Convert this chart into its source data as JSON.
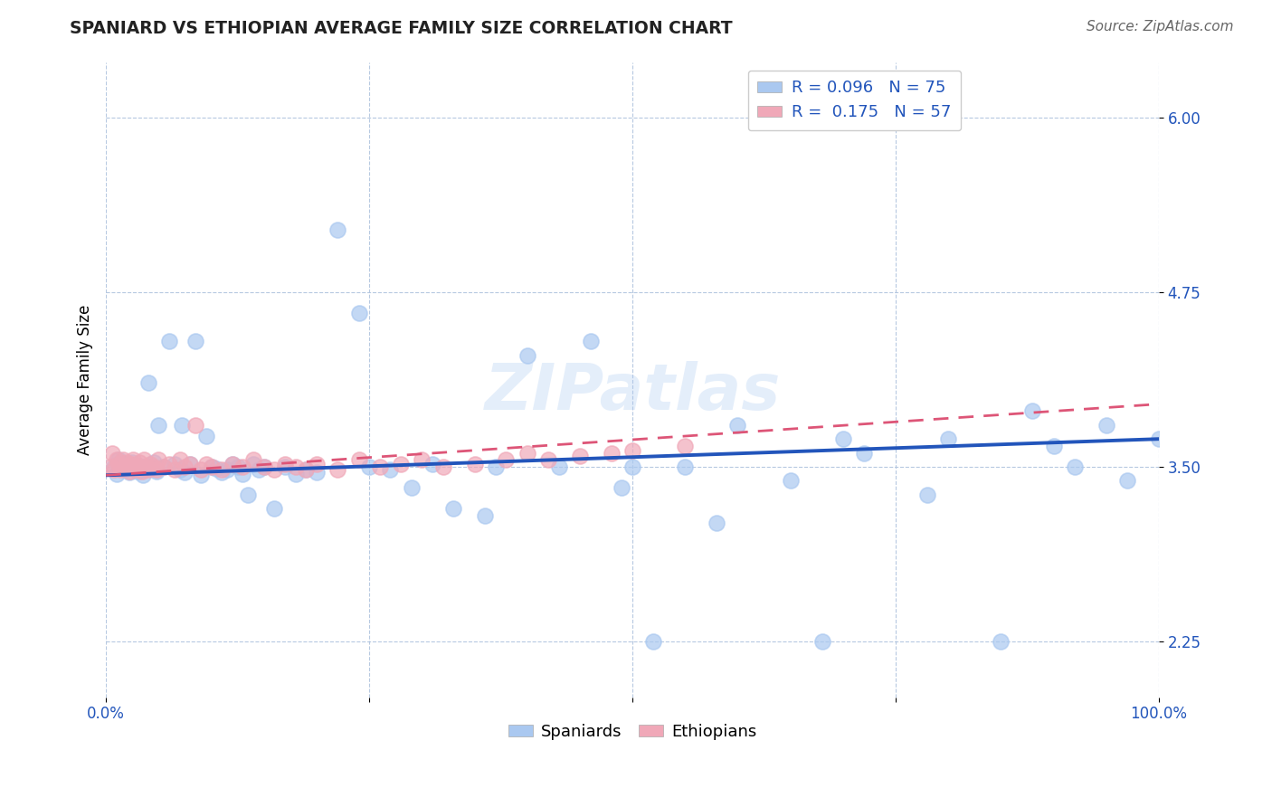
{
  "title": "SPANIARD VS ETHIOPIAN AVERAGE FAMILY SIZE CORRELATION CHART",
  "source": "Source: ZipAtlas.com",
  "ylabel": "Average Family Size",
  "xlim": [
    0.0,
    1.0
  ],
  "ylim": [
    1.85,
    6.4
  ],
  "yticks": [
    2.25,
    3.5,
    4.75,
    6.0
  ],
  "xticks": [
    0.0,
    0.25,
    0.5,
    0.75,
    1.0
  ],
  "xticklabels": [
    "0.0%",
    "",
    "",
    "",
    "100.0%"
  ],
  "yticklabels": [
    "2.25",
    "3.50",
    "4.75",
    "6.00"
  ],
  "spaniards_R": 0.096,
  "spaniards_N": 75,
  "ethiopians_R": 0.175,
  "ethiopians_N": 57,
  "spaniard_color": "#aac8f0",
  "ethiopian_color": "#f0a8b8",
  "spaniard_line_color": "#2255bb",
  "ethiopian_line_color": "#dd5577",
  "watermark": "ZIPatlas",
  "span_line_x0": 0.0,
  "span_line_y0": 3.44,
  "span_line_x1": 1.0,
  "span_line_y1": 3.7,
  "eth_line_x0": 0.0,
  "eth_line_y0": 3.44,
  "eth_line_x1": 1.0,
  "eth_line_y1": 3.95,
  "spaniards_x": [
    0.008,
    0.01,
    0.012,
    0.015,
    0.018,
    0.02,
    0.022,
    0.025,
    0.028,
    0.03,
    0.032,
    0.035,
    0.038,
    0.04,
    0.042,
    0.045,
    0.048,
    0.05,
    0.055,
    0.06,
    0.065,
    0.07,
    0.072,
    0.075,
    0.08,
    0.085,
    0.09,
    0.095,
    0.1,
    0.105,
    0.11,
    0.115,
    0.12,
    0.125,
    0.13,
    0.135,
    0.14,
    0.145,
    0.15,
    0.16,
    0.17,
    0.18,
    0.19,
    0.2,
    0.22,
    0.24,
    0.25,
    0.27,
    0.29,
    0.31,
    0.33,
    0.36,
    0.37,
    0.4,
    0.43,
    0.46,
    0.49,
    0.5,
    0.52,
    0.55,
    0.58,
    0.6,
    0.65,
    0.68,
    0.7,
    0.72,
    0.78,
    0.8,
    0.85,
    0.88,
    0.9,
    0.92,
    0.95,
    0.97,
    1.0
  ],
  "spaniards_y": [
    3.5,
    3.45,
    3.55,
    3.5,
    3.48,
    3.52,
    3.46,
    3.53,
    3.49,
    3.47,
    3.51,
    3.44,
    3.48,
    4.1,
    3.5,
    3.53,
    3.47,
    3.8,
    3.5,
    4.4,
    3.52,
    3.48,
    3.8,
    3.46,
    3.52,
    4.4,
    3.44,
    3.72,
    3.5,
    3.49,
    3.46,
    3.48,
    3.52,
    3.5,
    3.45,
    3.3,
    3.52,
    3.48,
    3.5,
    3.2,
    3.5,
    3.45,
    3.48,
    3.46,
    5.2,
    4.6,
    3.5,
    3.48,
    3.35,
    3.52,
    3.2,
    3.15,
    3.5,
    4.3,
    3.5,
    4.4,
    3.35,
    3.5,
    2.25,
    3.5,
    3.1,
    3.8,
    3.4,
    2.25,
    3.7,
    3.6,
    3.3,
    3.7,
    2.25,
    3.9,
    3.65,
    3.5,
    3.8,
    3.4,
    3.7
  ],
  "ethiopians_x": [
    0.004,
    0.006,
    0.008,
    0.01,
    0.012,
    0.014,
    0.016,
    0.018,
    0.02,
    0.022,
    0.024,
    0.026,
    0.028,
    0.03,
    0.032,
    0.034,
    0.036,
    0.038,
    0.04,
    0.042,
    0.045,
    0.048,
    0.05,
    0.055,
    0.06,
    0.065,
    0.07,
    0.075,
    0.08,
    0.085,
    0.09,
    0.095,
    0.1,
    0.11,
    0.12,
    0.13,
    0.14,
    0.15,
    0.16,
    0.17,
    0.18,
    0.19,
    0.2,
    0.22,
    0.24,
    0.26,
    0.28,
    0.3,
    0.32,
    0.35,
    0.38,
    0.4,
    0.42,
    0.45,
    0.48,
    0.5,
    0.55
  ],
  "ethiopians_y": [
    3.5,
    3.6,
    3.48,
    3.55,
    3.52,
    3.48,
    3.55,
    3.5,
    3.53,
    3.47,
    3.52,
    3.55,
    3.48,
    3.5,
    3.53,
    3.47,
    3.55,
    3.5,
    3.48,
    3.52,
    3.5,
    3.48,
    3.55,
    3.5,
    3.52,
    3.48,
    3.55,
    3.5,
    3.52,
    3.8,
    3.48,
    3.52,
    3.5,
    3.48,
    3.52,
    3.5,
    3.55,
    3.5,
    3.48,
    3.52,
    3.5,
    3.48,
    3.52,
    3.48,
    3.55,
    3.5,
    3.52,
    3.55,
    3.5,
    3.52,
    3.55,
    3.6,
    3.55,
    3.58,
    3.6,
    3.62,
    3.65
  ]
}
